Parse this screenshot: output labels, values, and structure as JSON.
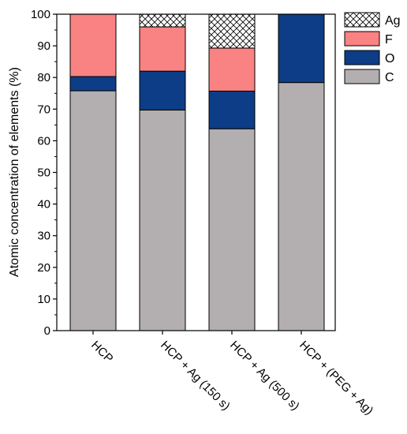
{
  "chart_data": {
    "type": "bar",
    "stacked": true,
    "categories": [
      "HCP",
      "HCP + Ag (150 s)",
      "HCP + Ag (500 s)",
      "HCP + (PEG + Ag)"
    ],
    "series": [
      {
        "name": "C",
        "color": "#b3aeaf",
        "pattern": "solid",
        "values": [
          75.8,
          69.7,
          63.8,
          78.4
        ]
      },
      {
        "name": "O",
        "color": "#0d3d86",
        "pattern": "solid",
        "values": [
          4.5,
          12.3,
          11.9,
          21.6
        ]
      },
      {
        "name": "F",
        "color": "#f98282",
        "pattern": "solid",
        "values": [
          19.7,
          14.0,
          13.6,
          0
        ]
      },
      {
        "name": "Ag",
        "color": "#ffffff",
        "pattern": "crosshatch",
        "values": [
          0,
          4.0,
          10.7,
          0
        ]
      }
    ],
    "xlabel": "",
    "ylabel": "Atomic concentration of elements (%)",
    "ylim": [
      0,
      100
    ],
    "yticks": [
      0,
      10,
      20,
      30,
      40,
      50,
      60,
      70,
      80,
      90,
      100
    ],
    "grid": false,
    "legend_position": "top-right",
    "legend_order": [
      "Ag",
      "F",
      "O",
      "C"
    ]
  }
}
